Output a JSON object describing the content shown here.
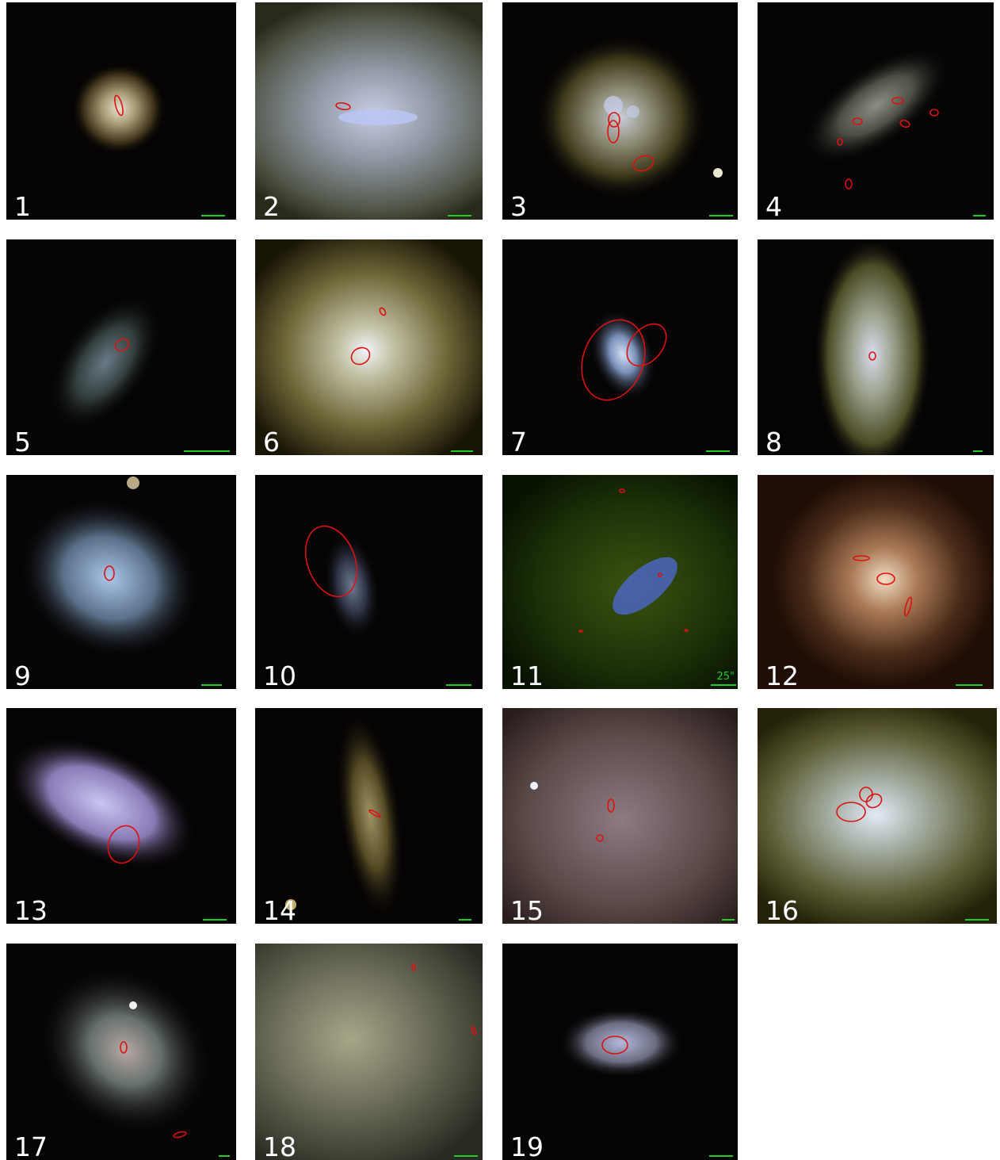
{
  "figure": {
    "panels": [
      {
        "label": "1",
        "scale_text": ""
      },
      {
        "label": "2",
        "scale_text": ""
      },
      {
        "label": "3",
        "scale_text": ""
      },
      {
        "label": "4",
        "scale_text": ""
      },
      {
        "label": "5",
        "scale_text": ""
      },
      {
        "label": "6",
        "scale_text": ""
      },
      {
        "label": "7",
        "scale_text": ""
      },
      {
        "label": "8",
        "scale_text": ""
      },
      {
        "label": "9",
        "scale_text": ""
      },
      {
        "label": "10",
        "scale_text": ""
      },
      {
        "label": "11",
        "scale_text": "25\""
      },
      {
        "label": "12",
        "scale_text": ""
      },
      {
        "label": "13",
        "scale_text": ""
      },
      {
        "label": "14",
        "scale_text": ""
      },
      {
        "label": "15",
        "scale_text": ""
      },
      {
        "label": "16",
        "scale_text": ""
      },
      {
        "label": "17",
        "scale_text": ""
      },
      {
        "label": "18",
        "scale_text": ""
      },
      {
        "label": "19",
        "scale_text": ""
      }
    ],
    "colors": {
      "aperture": "#dd1111",
      "scale_bar": "#22cc22",
      "label_text": "#ffffff",
      "sky": "#050303"
    }
  }
}
